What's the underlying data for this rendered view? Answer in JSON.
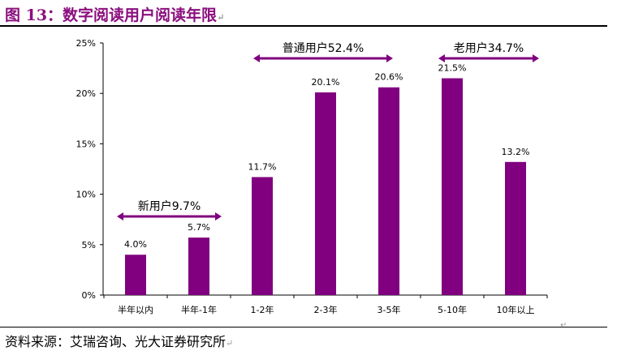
{
  "header": {
    "title": "图 13：数字阅读用户阅读年限"
  },
  "footer": {
    "source": "资料来源：艾瑞咨询、光大证券研究所"
  },
  "colors": {
    "bar": "#800080",
    "title": "#8b0f7e"
  },
  "chart_data": {
    "type": "bar",
    "categories": [
      "半年以内",
      "半年-1年",
      "1-2年",
      "2-3年",
      "3-5年",
      "5-10年",
      "10年以上"
    ],
    "values": [
      4.0,
      5.7,
      11.7,
      20.1,
      20.6,
      21.5,
      13.2
    ],
    "value_labels": [
      "4.0%",
      "5.7%",
      "11.7%",
      "20.1%",
      "20.6%",
      "21.5%",
      "13.2%"
    ],
    "ylim": [
      0,
      25
    ],
    "yticks": [
      "0%",
      "5%",
      "10%",
      "15%",
      "20%",
      "25%"
    ],
    "grid": false,
    "annotations": [
      {
        "text": "新用户9.7%",
        "from": 0,
        "to": 1
      },
      {
        "text": "普通用户52.4%",
        "from": 2,
        "to": 4
      },
      {
        "text": "老用户34.7%",
        "from": 5,
        "to": 6
      }
    ]
  }
}
